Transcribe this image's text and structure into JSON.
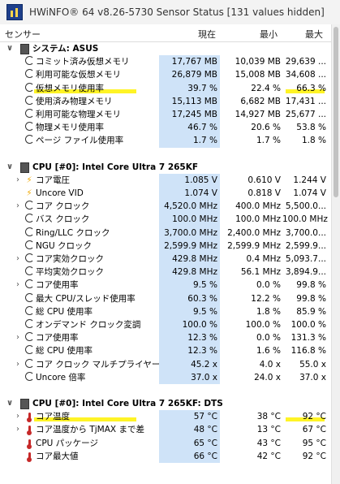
{
  "window": {
    "title": "HWiNFO® 64 v8.26-5730 Sensor Status [131 values hidden]"
  },
  "columns": {
    "sensor": "センサー",
    "current": "現在",
    "min": "最小",
    "max": "最大"
  },
  "rows": [
    {
      "type": "group",
      "icon": "drive-icon",
      "label": "システム: ASUS"
    },
    {
      "type": "item",
      "icon": "gauge-icon",
      "label": "コミット済み仮想メモリ",
      "current": "17,767 MB",
      "min": "10,039 MB",
      "max": "29,639 ..."
    },
    {
      "type": "item",
      "icon": "gauge-icon",
      "label": "利用可能な仮想メモリ",
      "current": "26,879 MB",
      "min": "15,008 MB",
      "max": "34,608 ..."
    },
    {
      "type": "item",
      "icon": "gauge-icon",
      "label": "仮想メモリ使用率",
      "current": "39.7 %",
      "min": "22.4 %",
      "max": "66.3 %",
      "marked": true
    },
    {
      "type": "item",
      "icon": "gauge-icon",
      "label": "使用済み物理メモリ",
      "current": "15,113 MB",
      "min": "6,682 MB",
      "max": "17,431 ..."
    },
    {
      "type": "item",
      "icon": "gauge-icon",
      "label": "利用可能な物理メモリ",
      "current": "17,245 MB",
      "min": "14,927 MB",
      "max": "25,677 ..."
    },
    {
      "type": "item",
      "icon": "gauge-icon",
      "label": "物理メモリ使用率",
      "current": "46.7 %",
      "min": "20.6 %",
      "max": "53.8 %"
    },
    {
      "type": "item",
      "icon": "gauge-icon",
      "label": "ページ ファイル使用率",
      "current": "1.7 %",
      "min": "1.7 %",
      "max": "1.8 %"
    },
    {
      "type": "blank"
    },
    {
      "type": "group",
      "icon": "cpu-icon",
      "label": "CPU [#0]: Intel Core Ultra 7 265KF"
    },
    {
      "type": "item",
      "icon": "bolt-icon",
      "expand": true,
      "label": "コア電圧",
      "current": "1.085 V",
      "min": "0.610 V",
      "max": "1.244 V"
    },
    {
      "type": "item",
      "icon": "bolt-icon",
      "label": "Uncore VID",
      "current": "1.074 V",
      "min": "0.818 V",
      "max": "1.074 V"
    },
    {
      "type": "item",
      "icon": "gauge-icon",
      "expand": true,
      "label": "コア クロック",
      "current": "4,520.0 MHz",
      "min": "400.0 MHz",
      "max": "5,500.0..."
    },
    {
      "type": "item",
      "icon": "gauge-icon",
      "label": "バス クロック",
      "current": "100.0 MHz",
      "min": "100.0 MHz",
      "max": "100.0 MHz"
    },
    {
      "type": "item",
      "icon": "gauge-icon",
      "label": "Ring/LLC クロック",
      "current": "3,700.0 MHz",
      "min": "2,400.0 MHz",
      "max": "3,700.0..."
    },
    {
      "type": "item",
      "icon": "gauge-icon",
      "label": "NGU クロック",
      "current": "2,599.9 MHz",
      "min": "2,599.9 MHz",
      "max": "2,599.9..."
    },
    {
      "type": "item",
      "icon": "gauge-icon",
      "expand": true,
      "label": "コア実効クロック",
      "current": "429.8 MHz",
      "min": "0.4 MHz",
      "max": "5,093.7..."
    },
    {
      "type": "item",
      "icon": "gauge-icon",
      "label": "平均実効クロック",
      "current": "429.8 MHz",
      "min": "56.1 MHz",
      "max": "3,894.9..."
    },
    {
      "type": "item",
      "icon": "gauge-icon",
      "expand": true,
      "label": "コア使用率",
      "current": "9.5 %",
      "min": "0.0 %",
      "max": "99.8 %"
    },
    {
      "type": "item",
      "icon": "gauge-icon",
      "label": "最大 CPU/スレッド使用率",
      "current": "60.3 %",
      "min": "12.2 %",
      "max": "99.8 %"
    },
    {
      "type": "item",
      "icon": "gauge-icon",
      "label": "総 CPU 使用率",
      "current": "9.5 %",
      "min": "1.8 %",
      "max": "85.9 %"
    },
    {
      "type": "item",
      "icon": "gauge-icon",
      "label": "オンデマンド クロック変調",
      "current": "100.0 %",
      "min": "100.0 %",
      "max": "100.0 %"
    },
    {
      "type": "item",
      "icon": "gauge-icon",
      "expand": true,
      "label": "コア使用率",
      "current": "12.3 %",
      "min": "0.0 %",
      "max": "131.3 %"
    },
    {
      "type": "item",
      "icon": "gauge-icon",
      "label": "総 CPU 使用率",
      "current": "12.3 %",
      "min": "1.6 %",
      "max": "116.8 %"
    },
    {
      "type": "item",
      "icon": "gauge-icon",
      "expand": true,
      "label": "コア クロック マルチプライヤー",
      "current": "45.2 x",
      "min": "4.0 x",
      "max": "55.0 x"
    },
    {
      "type": "item",
      "icon": "gauge-icon",
      "label": "Uncore 倍率",
      "current": "37.0 x",
      "min": "24.0 x",
      "max": "37.0 x"
    },
    {
      "type": "blank"
    },
    {
      "type": "group",
      "icon": "cpu-icon",
      "label": "CPU [#0]: Intel Core Ultra 7 265KF: DTS"
    },
    {
      "type": "item",
      "icon": "thermometer-icon",
      "expand": true,
      "label": "コア温度",
      "current": "57 °C",
      "min": "38 °C",
      "max": "92 °C",
      "marked": true
    },
    {
      "type": "item",
      "icon": "thermometer-icon",
      "expand": true,
      "label": "コア温度から TjMAX まで差",
      "current": "48 °C",
      "min": "13 °C",
      "max": "67 °C"
    },
    {
      "type": "item",
      "icon": "thermometer-icon",
      "label": "CPU パッケージ",
      "current": "65 °C",
      "min": "43 °C",
      "max": "95 °C"
    },
    {
      "type": "item",
      "icon": "thermometer-icon",
      "label": "コア最大値",
      "current": "66 °C",
      "min": "42 °C",
      "max": "92 °C"
    }
  ]
}
